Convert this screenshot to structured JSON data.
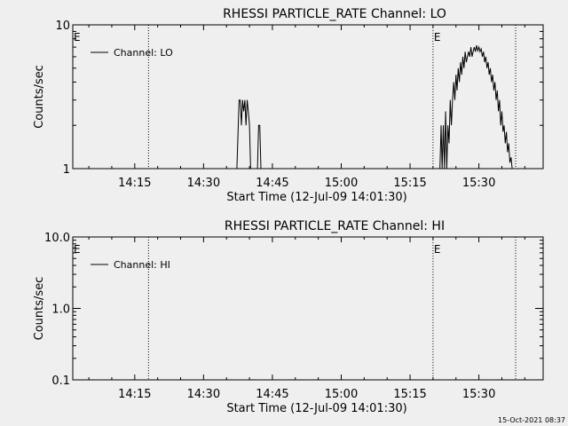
{
  "chart_data": [
    {
      "type": "line",
      "title": "RHESSI PARTICLE_RATE Channel: LO",
      "xlabel": "Start Time (12-Jul-09 14:01:30)",
      "ylabel": "Counts/sec",
      "y_scale": "log",
      "ylim": [
        1,
        10
      ],
      "y_ticks": [
        {
          "value": 1,
          "label": "1"
        },
        {
          "value": 10,
          "label": "10"
        }
      ],
      "xlim": [
        "14:01:30",
        "15:44:00"
      ],
      "x_ticks": [
        "14:15",
        "14:30",
        "14:45",
        "15:00",
        "15:15",
        "15:30"
      ],
      "legend": {
        "label": "Channel: LO",
        "placement": "top-left"
      },
      "event_markers": [
        {
          "time": "14:01:30",
          "label": "E"
        },
        {
          "time": "14:18:00",
          "label": ""
        },
        {
          "time": "15:20:00",
          "label": "E"
        },
        {
          "time": "15:38:00",
          "label": ""
        }
      ],
      "series": [
        {
          "name": "Channel: LO",
          "segments": [
            {
              "x": [
                "14:37:15",
                "14:37:45",
                "14:38:00",
                "14:38:15",
                "14:38:30",
                "14:38:45",
                "14:39:00",
                "14:39:15",
                "14:39:30",
                "14:39:45",
                "14:40:00",
                "14:40:15"
              ],
              "y": [
                1,
                3,
                3,
                2,
                3,
                2.5,
                3,
                2,
                3,
                2.5,
                2,
                1
              ]
            },
            {
              "x": [
                "14:41:45",
                "14:42:00",
                "14:42:15",
                "14:42:30"
              ],
              "y": [
                1,
                2,
                2,
                1
              ]
            },
            {
              "x": [
                "15:21:30",
                "15:21:45",
                "15:22:00",
                "15:22:15",
                "15:22:30",
                "15:22:45",
                "15:23:00",
                "15:23:15",
                "15:23:30",
                "15:23:45",
                "15:24:00",
                "15:24:15",
                "15:24:30",
                "15:24:45",
                "15:25:00",
                "15:25:15",
                "15:25:30",
                "15:25:45",
                "15:26:00",
                "15:26:15",
                "15:26:30",
                "15:26:45",
                "15:27:00",
                "15:27:15",
                "15:27:30",
                "15:27:45",
                "15:28:00",
                "15:28:15",
                "15:28:30",
                "15:28:45",
                "15:29:00",
                "15:29:15",
                "15:29:30",
                "15:29:45",
                "15:30:00",
                "15:30:15",
                "15:30:30",
                "15:30:45",
                "15:31:00",
                "15:31:15",
                "15:31:30",
                "15:31:45",
                "15:32:00",
                "15:32:15",
                "15:32:30",
                "15:32:45",
                "15:33:00",
                "15:33:15",
                "15:33:30",
                "15:33:45",
                "15:34:00",
                "15:34:15",
                "15:34:30",
                "15:34:45",
                "15:35:00",
                "15:35:15",
                "15:35:30",
                "15:35:45",
                "15:36:00",
                "15:36:15",
                "15:36:30",
                "15:36:45",
                "15:37:00",
                "15:37:15"
              ],
              "y": [
                1,
                2,
                1,
                2,
                1,
                2.5,
                1,
                2,
                1.5,
                3,
                2,
                3,
                4,
                3,
                4.5,
                3.5,
                5,
                4,
                5.5,
                4.5,
                6,
                5,
                6.5,
                5.5,
                6,
                6.5,
                6,
                7,
                6,
                6.5,
                7,
                6.5,
                7.2,
                6.6,
                7,
                6.5,
                6.8,
                6,
                6.5,
                5.5,
                6,
                5,
                5.5,
                4.5,
                5,
                4,
                4.5,
                3.5,
                4,
                3,
                3.5,
                2.5,
                3,
                2,
                2.5,
                1.8,
                2,
                1.5,
                1.8,
                1.3,
                1.5,
                1.1,
                1.2,
                1
              ]
            }
          ]
        }
      ]
    },
    {
      "type": "line",
      "title": "RHESSI PARTICLE_RATE Channel: HI",
      "xlabel": "Start Time (12-Jul-09 14:01:30)",
      "ylabel": "Counts/sec",
      "y_scale": "log",
      "ylim": [
        0.1,
        10
      ],
      "y_ticks": [
        {
          "value": 0.1,
          "label": "0.1"
        },
        {
          "value": 1,
          "label": "1.0"
        },
        {
          "value": 10,
          "label": "10.0"
        }
      ],
      "xlim": [
        "14:01:30",
        "15:44:00"
      ],
      "x_ticks": [
        "14:15",
        "14:30",
        "14:45",
        "15:00",
        "15:15",
        "15:30"
      ],
      "legend": {
        "label": "Channel: HI",
        "placement": "top-left"
      },
      "event_markers": [
        {
          "time": "14:01:30",
          "label": "E"
        },
        {
          "time": "14:18:00",
          "label": ""
        },
        {
          "time": "15:20:00",
          "label": "E"
        },
        {
          "time": "15:38:00",
          "label": ""
        }
      ],
      "series": [
        {
          "name": "Channel: HI",
          "segments": []
        }
      ]
    }
  ],
  "footer": {
    "timestamp": "15-Oct-2021 08:37"
  }
}
